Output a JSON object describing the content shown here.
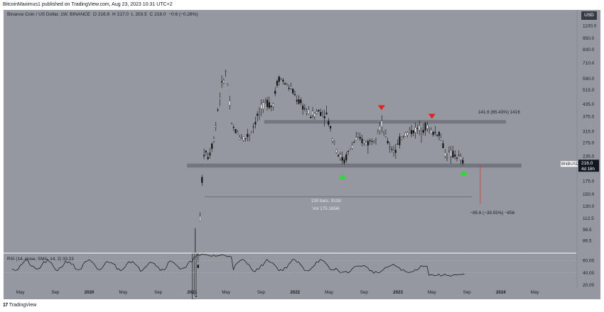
{
  "header": {
    "publish_text": "BitcoinMaximus1 published on TradingView.com, Aug 23, 2023 10:31 UTC+2"
  },
  "symbol": {
    "name": "Binance Coin / US Dollar, 1W, BINANCE",
    "open_label": "O",
    "open": "216.6",
    "high_label": "H",
    "high": "217.0",
    "low_label": "L",
    "low": "203.5",
    "close_label": "C",
    "close": "216.0",
    "change": "−0.6 (−0.28%)"
  },
  "currency": "USD",
  "price_badge": {
    "ticker": "BNBUSD",
    "price": "216.0",
    "countdown": "4d 16h"
  },
  "rsi": {
    "title": "RSI (14, close, SMA, 14, 2)",
    "value": "33.23",
    "ticks": [
      "60.00",
      "40.00",
      "20.00"
    ]
  },
  "brand": {
    "logo_mark": "17",
    "label": "TradingView"
  },
  "chart_data": {
    "type": "candlestick",
    "timeframe": "1W",
    "title": "Binance Coin / US Dollar, 1W, BINANCE",
    "colors": {
      "background": "#9598a1",
      "candle": "#111111",
      "support_zone": "#6f727b",
      "resistance_zone": "#70737c",
      "up_marker": "#22e12b",
      "down_marker": "#e8201d",
      "projection_line": "#c93b3b"
    },
    "x_axis": {
      "ticks": [
        "May",
        "Sep",
        "2020",
        "May",
        "Sep",
        "2021",
        "May",
        "Sep",
        "2022",
        "May",
        "Sep",
        "2023",
        "May",
        "Sep",
        "2024",
        "May"
      ]
    },
    "y_axis": {
      "scale": "log",
      "range": [
        75,
        1180
      ],
      "ticks": [
        "1100.0",
        "950.0",
        "830.0",
        "710.0",
        "590.0",
        "515.0",
        "435.0",
        "375.0",
        "315.0",
        "275.0",
        "235.0",
        "175.0",
        "150.0",
        "130.0",
        "112.5",
        "98.5",
        "86.5"
      ]
    },
    "price_path": [
      {
        "t": 2021.0,
        "p": 40
      },
      {
        "t": 2021.05,
        "p": 45
      },
      {
        "t": 2021.08,
        "p": 120
      },
      {
        "t": 2021.12,
        "p": 260
      },
      {
        "t": 2021.16,
        "p": 230
      },
      {
        "t": 2021.22,
        "p": 300
      },
      {
        "t": 2021.28,
        "p": 520
      },
      {
        "t": 2021.33,
        "p": 640
      },
      {
        "t": 2021.38,
        "p": 340
      },
      {
        "t": 2021.45,
        "p": 300
      },
      {
        "t": 2021.52,
        "p": 290
      },
      {
        "t": 2021.58,
        "p": 320
      },
      {
        "t": 2021.65,
        "p": 390
      },
      {
        "t": 2021.72,
        "p": 450
      },
      {
        "t": 2021.78,
        "p": 420
      },
      {
        "t": 2021.84,
        "p": 600
      },
      {
        "t": 2021.9,
        "p": 560
      },
      {
        "t": 2021.96,
        "p": 520
      },
      {
        "t": 2022.02,
        "p": 460
      },
      {
        "t": 2022.08,
        "p": 420
      },
      {
        "t": 2022.15,
        "p": 380
      },
      {
        "t": 2022.22,
        "p": 400
      },
      {
        "t": 2022.3,
        "p": 390
      },
      {
        "t": 2022.36,
        "p": 300
      },
      {
        "t": 2022.42,
        "p": 240
      },
      {
        "t": 2022.48,
        "p": 220
      },
      {
        "t": 2022.54,
        "p": 260
      },
      {
        "t": 2022.6,
        "p": 290
      },
      {
        "t": 2022.66,
        "p": 280
      },
      {
        "t": 2022.72,
        "p": 275
      },
      {
        "t": 2022.78,
        "p": 300
      },
      {
        "t": 2022.84,
        "p": 345
      },
      {
        "t": 2022.88,
        "p": 290
      },
      {
        "t": 2022.93,
        "p": 260
      },
      {
        "t": 2022.98,
        "p": 250
      },
      {
        "t": 2023.04,
        "p": 300
      },
      {
        "t": 2023.1,
        "p": 310
      },
      {
        "t": 2023.16,
        "p": 320
      },
      {
        "t": 2023.22,
        "p": 325
      },
      {
        "t": 2023.28,
        "p": 335
      },
      {
        "t": 2023.33,
        "p": 310
      },
      {
        "t": 2023.4,
        "p": 310
      },
      {
        "t": 2023.46,
        "p": 240
      },
      {
        "t": 2023.52,
        "p": 240
      },
      {
        "t": 2023.58,
        "p": 235
      },
      {
        "t": 2023.64,
        "p": 216
      }
    ],
    "zones": [
      {
        "role": "resistance",
        "low": 345,
        "high": 360,
        "from": 2021.7,
        "to": 2024.05
      },
      {
        "role": "support",
        "low": 205,
        "high": 215,
        "from": 2020.95,
        "to": 2024.2
      }
    ],
    "markers": [
      {
        "kind": "up",
        "t": 2022.46,
        "p": 185
      },
      {
        "kind": "down",
        "t": 2022.84,
        "p": 415
      },
      {
        "kind": "down",
        "t": 2023.33,
        "p": 375
      },
      {
        "kind": "up",
        "t": 2023.64,
        "p": 193
      }
    ],
    "annotations": [
      {
        "text": "141.6 (65.43%) 1416",
        "t": 2023.78,
        "p": 390
      },
      {
        "text": "130 bars, 910d",
        "t": 2022.3,
        "p": 136
      },
      {
        "text": "Vol 175.165i6",
        "t": 2022.3,
        "p": 124
      },
      {
        "text": "−85.6 (−39.55%) −856",
        "t": 2023.7,
        "p": 118
      }
    ]
  }
}
